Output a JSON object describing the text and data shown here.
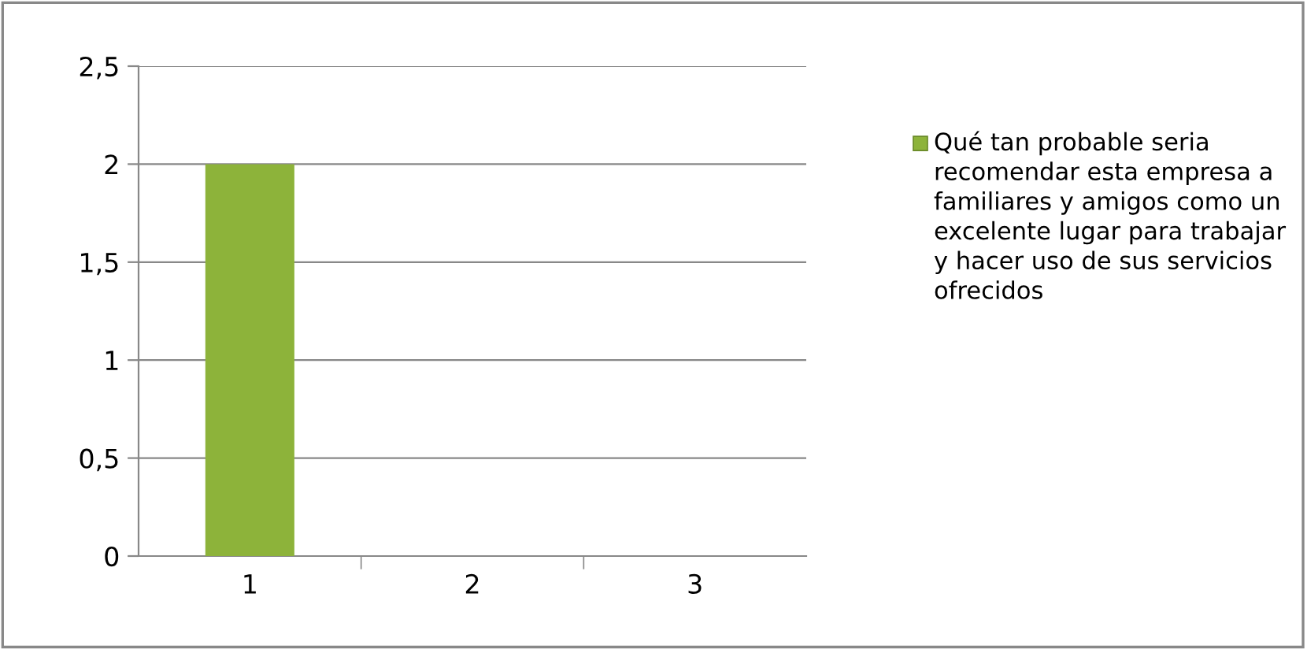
{
  "chart_data": {
    "type": "bar",
    "categories": [
      "1",
      "2",
      "3"
    ],
    "series": [
      {
        "name": "Qué tan probable seria recomendar esta empresa a familiares y amigos como un excelente lugar para trabajar y hacer uso de sus servicios ofrecidos",
        "color": "#8db33a",
        "values": [
          2,
          0,
          0
        ]
      }
    ],
    "ylim": [
      0,
      2.5
    ],
    "yticks": [
      0,
      {
        "value": 0.5,
        "label": "0,5"
      },
      1,
      {
        "value": 1.5,
        "label": "1,5"
      },
      2,
      {
        "value": 2.5,
        "label": "2,5"
      }
    ],
    "grid": "y",
    "legend": "right"
  }
}
